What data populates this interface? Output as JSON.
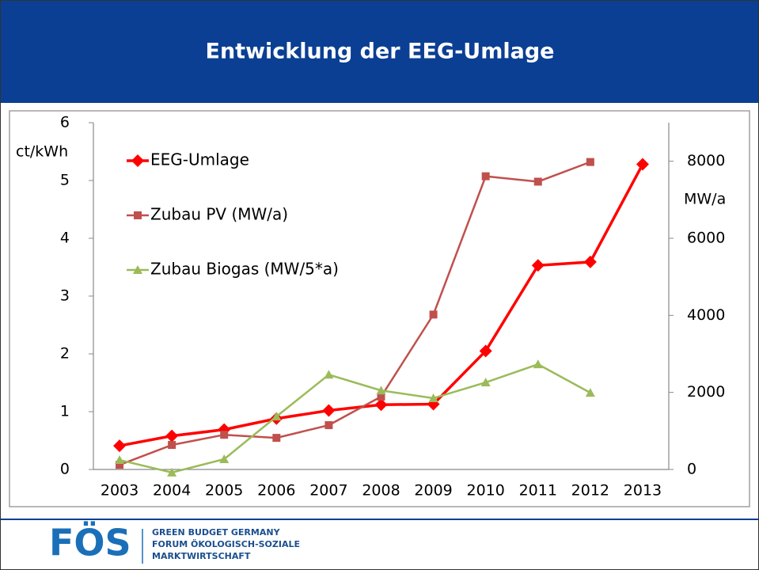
{
  "title": "Entwicklung der EEG-Umlage",
  "chart_data": {
    "type": "line",
    "ylabel": "ct/kWh",
    "y2label": "MW/a",
    "categories": [
      "2003",
      "2004",
      "2005",
      "2006",
      "2007",
      "2008",
      "2009",
      "2010",
      "2011",
      "2012",
      "2013"
    ],
    "series": [
      {
        "name": "EEG-Umlage",
        "color": "#ff0000",
        "marker": "diamond",
        "axis": "y",
        "values": [
          0.41,
          0.58,
          0.69,
          0.88,
          1.02,
          1.12,
          1.13,
          2.05,
          3.53,
          3.59,
          5.28
        ]
      },
      {
        "name": "Zubau PV (MW/a)",
        "color": "#c0504d",
        "marker": "square",
        "axis": "y2",
        "values": [
          120,
          636,
          900,
          820,
          1150,
          1890,
          4020,
          7610,
          7470,
          7980,
          null
        ]
      },
      {
        "name": "Zubau Biogas (MW/5*a)",
        "color": "#9bbb59",
        "marker": "triangle",
        "axis": "y2",
        "values": [
          246,
          -80,
          267,
          1374,
          2460,
          2050,
          1850,
          2260,
          2730,
          1990,
          null
        ]
      }
    ],
    "ylim": [
      0,
      6
    ],
    "yticks": [
      0,
      1,
      2,
      3,
      4,
      5,
      6
    ],
    "y2lim": [
      0,
      9000
    ],
    "y2ticks": [
      0,
      2000,
      4000,
      6000,
      8000
    ],
    "grid": false,
    "legend": "upper left"
  },
  "footer": {
    "logo": "FÖS",
    "lines": [
      "GREEN BUDGET GERMANY",
      "FORUM ÖKOLOGISCH-SOZIALE",
      "MARKTWIRTSCHAFT"
    ]
  }
}
